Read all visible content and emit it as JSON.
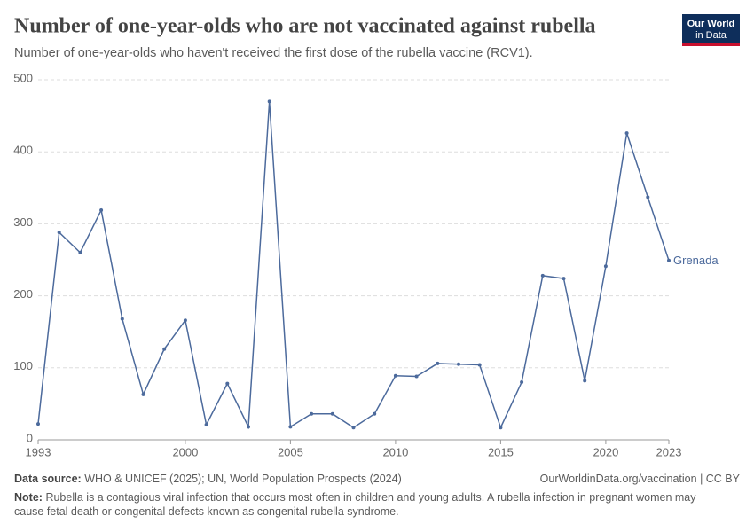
{
  "chart_data": {
    "type": "line",
    "title": "Number of one-year-olds who are not vaccinated against rubella",
    "subtitle": "Number of one-year-olds who haven't received the first dose of the rubella vaccine (RCV1).",
    "x": [
      1993,
      1994,
      1995,
      1996,
      1997,
      1998,
      1999,
      2000,
      2001,
      2002,
      2003,
      2004,
      2005,
      2006,
      2007,
      2008,
      2009,
      2010,
      2011,
      2012,
      2013,
      2014,
      2015,
      2016,
      2017,
      2018,
      2019,
      2020,
      2021,
      2022,
      2023
    ],
    "series": [
      {
        "name": "Grenada",
        "color": "#4c6a9c",
        "values": [
          22,
          288,
          260,
          319,
          168,
          63,
          126,
          166,
          21,
          78,
          18,
          470,
          18,
          36,
          36,
          17,
          36,
          89,
          88,
          106,
          105,
          104,
          17,
          80,
          228,
          224,
          82,
          241,
          426,
          337,
          249
        ]
      }
    ],
    "xlim": [
      1993,
      2023
    ],
    "xticks": [
      1993,
      2000,
      2005,
      2010,
      2015,
      2020,
      2023
    ],
    "ylim": [
      0,
      500
    ],
    "yticks": [
      0,
      100,
      200,
      300,
      400,
      500
    ],
    "grid": true
  },
  "logo": [
    "Our World",
    "in Data"
  ],
  "footer": {
    "source_label": "Data source:",
    "source": "WHO & UNICEF (2025); UN, World Population Prospects (2024)",
    "url": "OurWorldinData.org/vaccination | CC BY",
    "note_label": "Note:",
    "note": "Rubella is a contagious viral infection that occurs most often in children and young adults. A rubella infection in pregnant women may cause fetal death or congenital defects known as congenital rubella syndrome."
  }
}
